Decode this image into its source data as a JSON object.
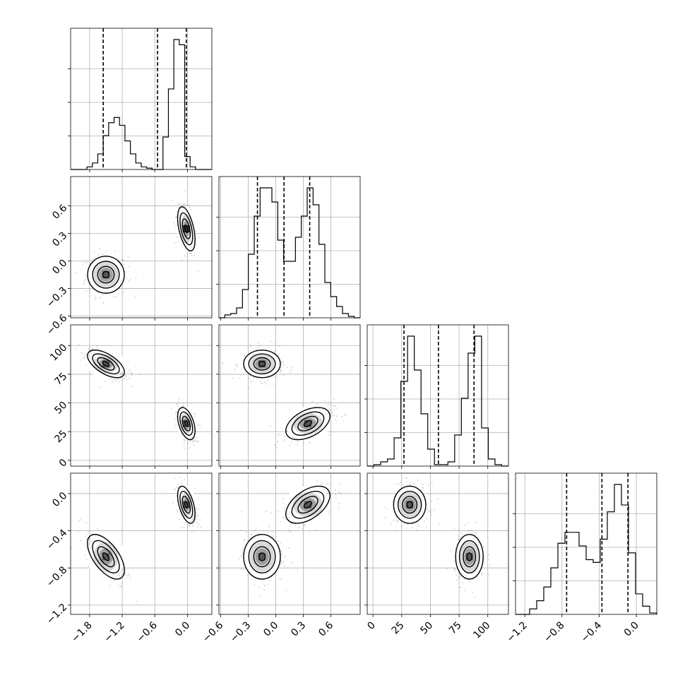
{
  "chart_data": {
    "type": "corner",
    "grid": true,
    "parameters": [
      {
        "range": [
          -2.15,
          0.45
        ],
        "ticks": [
          -1.8,
          -1.2,
          -0.6,
          0.0
        ],
        "tick_labels": [
          "−1.8",
          "−1.2",
          "−0.6",
          "0.0"
        ],
        "quantiles": [
          -1.55,
          -0.55,
          -0.02
        ],
        "histogram": [
          0,
          0,
          0,
          2,
          5,
          12,
          26,
          36,
          40,
          34,
          22,
          12,
          5,
          2,
          1,
          0,
          0,
          25,
          62,
          100,
          96,
          10,
          2,
          0,
          0,
          0
        ]
      },
      {
        "range": [
          -0.62,
          0.92
        ],
        "ticks": [
          -0.6,
          -0.3,
          0.0,
          0.3,
          0.6
        ],
        "tick_labels": [
          "−0.6",
          "−0.3",
          "0.0",
          "0.3",
          "0.6"
        ],
        "quantiles": [
          -0.2,
          0.09,
          0.37
        ],
        "histogram": [
          0,
          2,
          3,
          7,
          20,
          45,
          72,
          92,
          92,
          82,
          55,
          40,
          40,
          57,
          72,
          92,
          80,
          52,
          25,
          15,
          8,
          3,
          1,
          0
        ]
      },
      {
        "range": [
          -5,
          118
        ],
        "ticks": [
          0,
          25,
          50,
          75,
          100
        ],
        "tick_labels": [
          "0",
          "25",
          "50",
          "75",
          "100"
        ],
        "quantiles": [
          27,
          57,
          88
        ],
        "histogram": [
          0,
          1,
          3,
          5,
          20,
          60,
          92,
          68,
          37,
          12,
          1,
          1,
          3,
          22,
          48,
          80,
          92,
          27,
          5,
          1,
          0
        ]
      },
      {
        "range": [
          -1.3,
          0.22
        ],
        "ticks": [
          -1.2,
          -0.8,
          -0.4,
          0.0
        ],
        "tick_labels": [
          "−1.2",
          "−0.8",
          "−0.4",
          "0.0"
        ],
        "quantiles": [
          -0.75,
          -0.37,
          -0.09
        ],
        "histogram": [
          0,
          0,
          4,
          10,
          20,
          34,
          52,
          60,
          60,
          50,
          40,
          38,
          55,
          75,
          95,
          80,
          45,
          15,
          6,
          1
        ]
      }
    ],
    "modes": [
      {
        "center": [
          -1.5,
          -0.15,
          84,
          -0.68
        ],
        "sigma": [
          0.17,
          0.1,
          6,
          0.12
        ]
      },
      {
        "center": [
          -0.02,
          0.35,
          32,
          -0.12
        ],
        "sigma": [
          0.08,
          0.12,
          7,
          0.1
        ]
      }
    ]
  }
}
